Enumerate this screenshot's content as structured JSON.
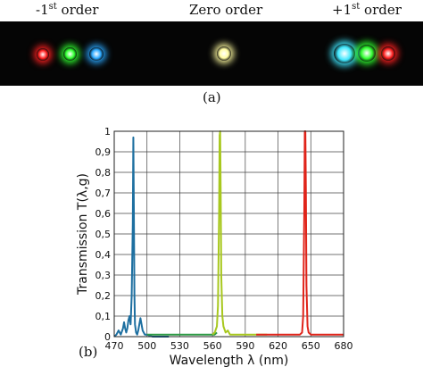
{
  "top_panel": {
    "label_minus": {
      "prefix": "-1",
      "sup": "st",
      "suffix": " order"
    },
    "label_zero": "Zero order",
    "label_plus": {
      "prefix": "+1",
      "sup": "st",
      "suffix": " order"
    },
    "panel_label": "(a)",
    "spot_colors": {
      "red": "#ff2020",
      "green": "#30ff30",
      "blue": "#2aa8ff",
      "yellow": "#fffba0",
      "cyan": "#40e8ff"
    }
  },
  "bottom_panel": {
    "panel_label": "(b)"
  },
  "chart_data": {
    "type": "line",
    "xlabel": "Wavelength λ (nm)",
    "ylabel": "Transmission T(λ,g)",
    "xlim": [
      470,
      680
    ],
    "ylim": [
      0,
      1
    ],
    "x_ticks": [
      470,
      500,
      530,
      560,
      590,
      620,
      650,
      680
    ],
    "y_ticks": [
      0,
      0.1,
      0.2,
      0.3,
      0.4,
      0.5,
      0.6,
      0.7,
      0.8,
      0.9,
      1
    ],
    "y_tick_labels": [
      "0",
      "0,1",
      "0,2",
      "0,3",
      "0,4",
      "0,5",
      "0,6",
      "0,7",
      "0,8",
      "0,9",
      "1"
    ],
    "grid": true,
    "series": [
      {
        "color": "#1d6fa0",
        "x": [
          470,
          472,
          474,
          476,
          478,
          479,
          480,
          481,
          482,
          483,
          484,
          485,
          486,
          487,
          487.5,
          488,
          488.5,
          489,
          490,
          491,
          492,
          493,
          494,
          495,
          496,
          497,
          498,
          500,
          505,
          510,
          520
        ],
        "y": [
          0,
          0.01,
          0.03,
          0.01,
          0.04,
          0.07,
          0.04,
          0.02,
          0.04,
          0.08,
          0.1,
          0.06,
          0.2,
          0.55,
          0.97,
          0.6,
          0.2,
          0.06,
          0.02,
          0.01,
          0.03,
          0.06,
          0.09,
          0.06,
          0.03,
          0.02,
          0.01,
          0.01,
          0,
          0,
          0
        ]
      },
      {
        "color": "#2e9a45",
        "x": [
          500,
          510,
          520,
          530,
          540,
          550,
          560,
          562,
          564
        ],
        "y": [
          0.01,
          0.01,
          0.01,
          0.01,
          0.01,
          0.01,
          0.01,
          0.01,
          0.02
        ]
      },
      {
        "color": "#a8c81e",
        "x": [
          560,
          562,
          564,
          565,
          566,
          566.5,
          567,
          567.5,
          568,
          569,
          570,
          572,
          574,
          576,
          580,
          590,
          600,
          610
        ],
        "y": [
          0.01,
          0.02,
          0.05,
          0.15,
          0.6,
          0.98,
          1.0,
          0.7,
          0.3,
          0.1,
          0.05,
          0.02,
          0.03,
          0.01,
          0.01,
          0.01,
          0.01,
          0.01
        ]
      },
      {
        "color": "#e0241a",
        "x": [
          600,
          610,
          620,
          630,
          640,
          642,
          643,
          644,
          644.5,
          645,
          645.5,
          646,
          647,
          648,
          650,
          660,
          670,
          680
        ],
        "y": [
          0.01,
          0.01,
          0.01,
          0.01,
          0.01,
          0.02,
          0.1,
          0.6,
          1.0,
          1.0,
          0.7,
          0.25,
          0.05,
          0.02,
          0.01,
          0.01,
          0.01,
          0.01
        ]
      }
    ]
  }
}
